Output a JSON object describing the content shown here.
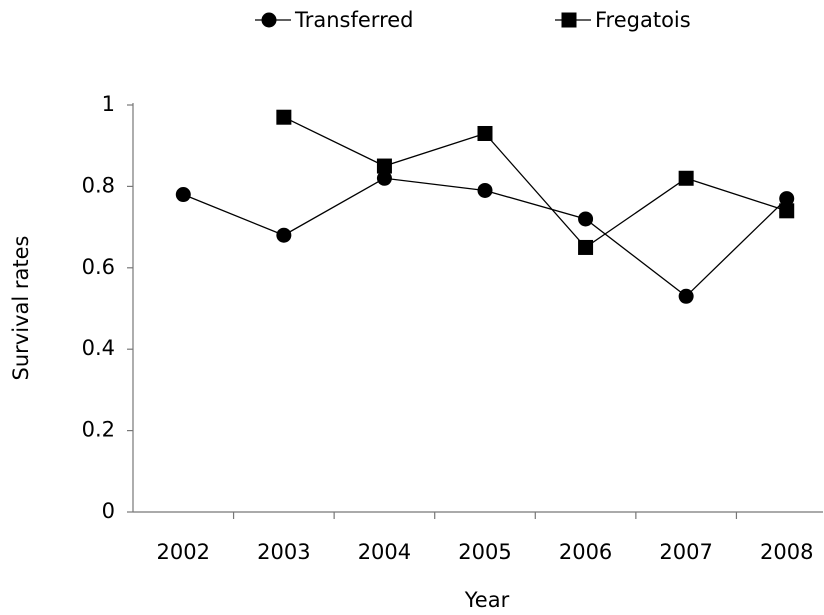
{
  "chart_data": {
    "type": "line",
    "x_label": "Year",
    "y_label": "Survival rates",
    "categories": [
      "2002",
      "2003",
      "2004",
      "2005",
      "2006",
      "2007",
      "2008"
    ],
    "series": [
      {
        "name": "Transferred",
        "color": "#000000",
        "marker": "circle",
        "values": [
          0.78,
          0.68,
          0.82,
          0.79,
          0.72,
          0.53,
          0.77
        ]
      },
      {
        "name": "Fregatois",
        "color": "#000000",
        "marker": "square",
        "values": [
          null,
          0.97,
          0.85,
          0.93,
          0.65,
          0.82,
          0.74
        ]
      }
    ],
    "ylim": [
      0,
      1
    ],
    "yticks": [
      0,
      0.2,
      0.4,
      0.6,
      0.8,
      1
    ],
    "grid": false,
    "legend": "top"
  }
}
